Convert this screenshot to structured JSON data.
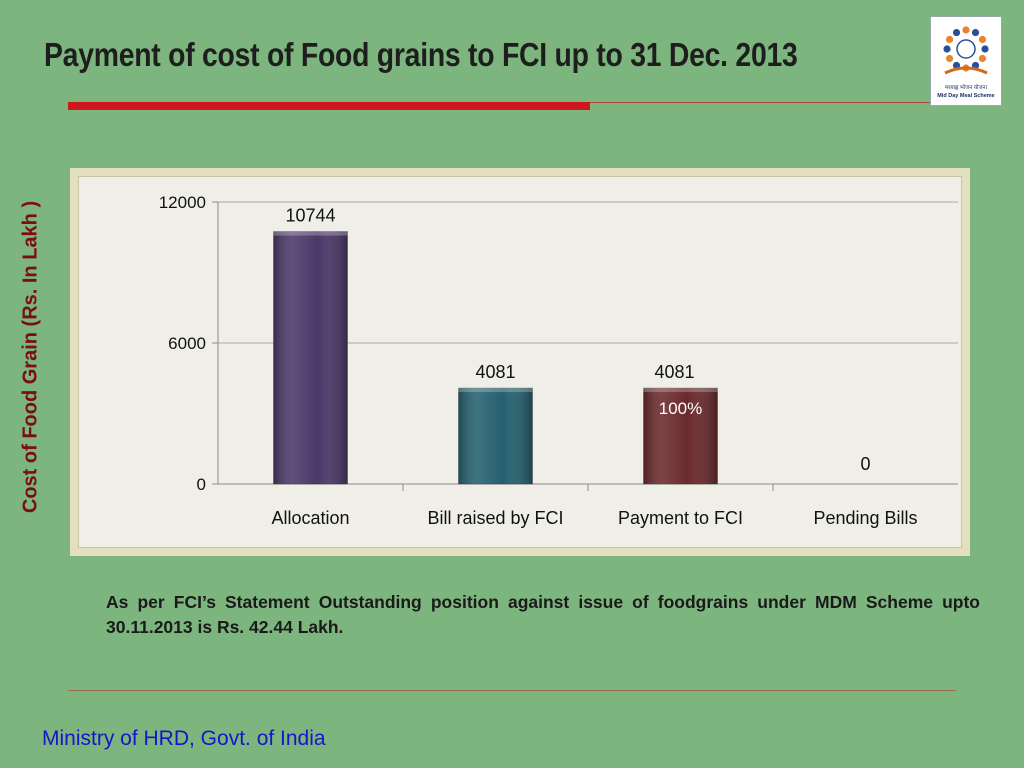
{
  "slide": {
    "title": "Payment of cost of Food grains to FCI up to 31 Dec. 2013",
    "note": "As per FCI’s Statement Outstanding position against issue of foodgrains under MDM Scheme upto 30.11.2013 is Rs. 42.44 Lakh.",
    "footer": "Ministry of HRD, Govt. of India"
  },
  "logo": {
    "text_hindi": "मध्याह्न भोजन योजना",
    "text": "Mid Day Meal Scheme",
    "icon": "mid-day-meal-logo",
    "colors": {
      "ring_blue": "#2a4f9a",
      "ring_orange": "#e8842a",
      "arc": "#d4691f"
    }
  },
  "chart_data": {
    "type": "bar",
    "title": "",
    "ylabel": "Cost of Food Grain (Rs. In Lakh )",
    "xlabel": "",
    "categories": [
      "Allocation",
      "Bill raised by FCI",
      "Payment to FCI",
      "Pending Bills"
    ],
    "values": [
      10744,
      4081,
      4081,
      0
    ],
    "data_labels": [
      "10744",
      "4081",
      "4081",
      "0"
    ],
    "bar_colors": [
      "#4b3868",
      "#25606f",
      "#6a2a2e",
      "#6a2a2e"
    ],
    "extra_labels": [
      {
        "category": "Payment to FCI",
        "text": "100%",
        "color": "#ffffff"
      }
    ],
    "ylim": [
      0,
      12000
    ],
    "yticks": [
      0,
      6000,
      12000
    ],
    "ytick_labels": [
      "0",
      "6000",
      "12000"
    ],
    "grid": true,
    "legend": "none"
  }
}
